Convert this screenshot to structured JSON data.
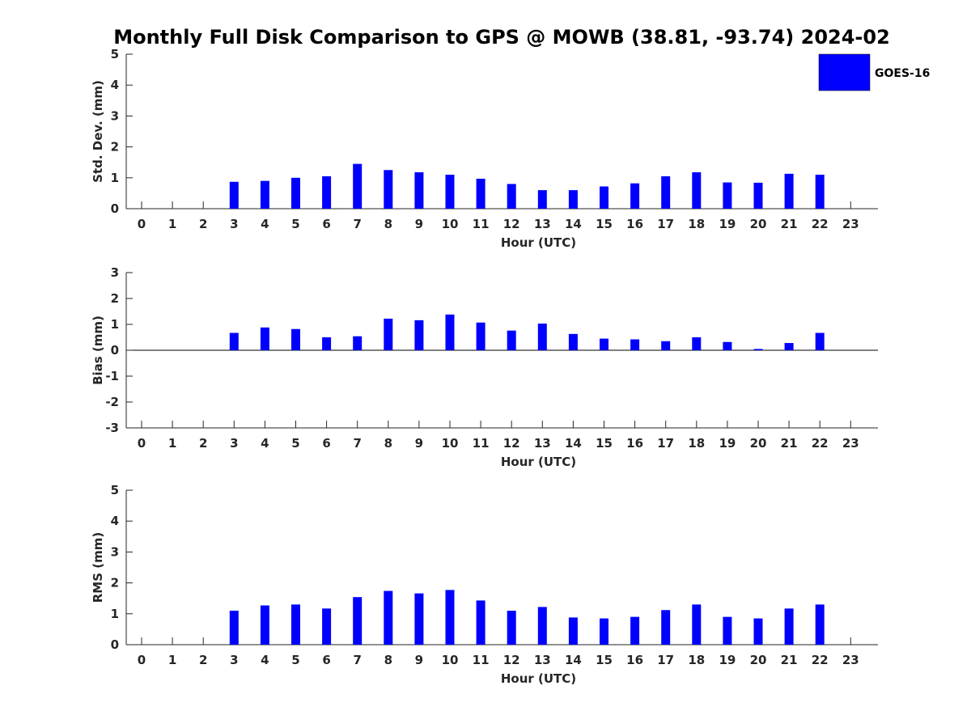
{
  "chart_data": {
    "title": "Monthly Full Disk Comparison to GPS @ MOWB (38.81, -93.74) 2024-02",
    "legend": {
      "label": "GOES-16",
      "color": "#0000ff",
      "placement": "top-right"
    },
    "charts": [
      {
        "type": "bar",
        "ylabel": "Std. Dev. (mm)",
        "xlabel": "Hour (UTC)",
        "ylim": [
          0,
          5
        ],
        "yticks": [
          "0",
          "1",
          "2",
          "3",
          "4",
          "5"
        ],
        "categories": [
          "0",
          "1",
          "2",
          "3",
          "4",
          "5",
          "6",
          "7",
          "8",
          "9",
          "10",
          "11",
          "12",
          "13",
          "14",
          "15",
          "16",
          "17",
          "18",
          "19",
          "20",
          "21",
          "22",
          "23"
        ],
        "values": [
          null,
          null,
          null,
          0.87,
          0.9,
          1.0,
          1.05,
          1.45,
          1.25,
          1.18,
          1.1,
          0.97,
          0.8,
          0.6,
          0.6,
          0.72,
          0.82,
          1.05,
          1.18,
          0.85,
          0.84,
          1.13,
          1.1,
          null
        ]
      },
      {
        "type": "bar",
        "ylabel": "Bias (mm)",
        "xlabel": "Hour (UTC)",
        "ylim": [
          -3,
          3
        ],
        "yticks": [
          "-3",
          "-2",
          "-1",
          "0",
          "1",
          "2",
          "3"
        ],
        "categories": [
          "0",
          "1",
          "2",
          "3",
          "4",
          "5",
          "6",
          "7",
          "8",
          "9",
          "10",
          "11",
          "12",
          "13",
          "14",
          "15",
          "16",
          "17",
          "18",
          "19",
          "20",
          "21",
          "22",
          "23"
        ],
        "values": [
          null,
          null,
          null,
          0.67,
          0.88,
          0.82,
          0.5,
          0.54,
          1.22,
          1.16,
          1.38,
          1.07,
          0.76,
          1.03,
          0.63,
          0.45,
          0.42,
          0.35,
          0.5,
          0.32,
          0.05,
          0.28,
          0.67,
          null
        ]
      },
      {
        "type": "bar",
        "ylabel": "RMS (mm)",
        "xlabel": "Hour (UTC)",
        "ylim": [
          0,
          5
        ],
        "yticks": [
          "0",
          "1",
          "2",
          "3",
          "4",
          "5"
        ],
        "categories": [
          "0",
          "1",
          "2",
          "3",
          "4",
          "5",
          "6",
          "7",
          "8",
          "9",
          "10",
          "11",
          "12",
          "13",
          "14",
          "15",
          "16",
          "17",
          "18",
          "19",
          "20",
          "21",
          "22",
          "23"
        ],
        "values": [
          null,
          null,
          null,
          1.1,
          1.27,
          1.3,
          1.17,
          1.54,
          1.74,
          1.66,
          1.77,
          1.43,
          1.1,
          1.22,
          0.88,
          0.85,
          0.9,
          1.12,
          1.3,
          0.9,
          0.85,
          1.17,
          1.3,
          null
        ]
      }
    ]
  }
}
